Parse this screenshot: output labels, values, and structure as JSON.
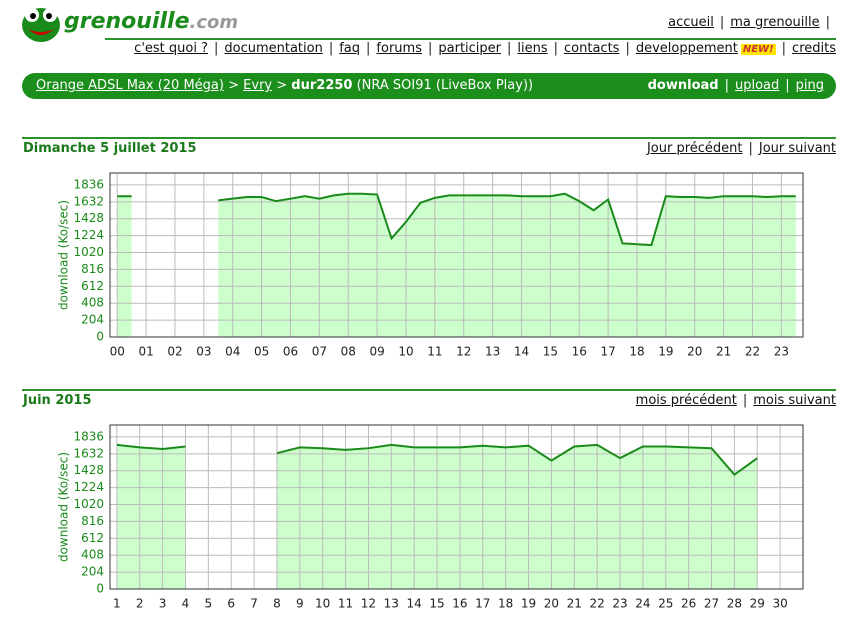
{
  "header": {
    "logo": "grenouille",
    "logo_suffix": ".com",
    "separator": "|",
    "top_links": [
      "accueil",
      "ma grenouille"
    ],
    "nav": [
      "c'est quoi ?",
      "documentation",
      "faq",
      "forums",
      "participer",
      "liens",
      "contacts",
      "developpement",
      "credits"
    ],
    "new_badge": "NEW!"
  },
  "breadcrumb": {
    "arrow": ">",
    "isp": "Orange ADSL Max (20 Méga)",
    "city": "Evry",
    "probe": "dur2250",
    "detail": "(NRA SOI91 (LiveBox Play))",
    "tabs": [
      "download",
      "upload",
      "ping"
    ]
  },
  "chart_data": [
    {
      "type": "area",
      "title": "Dimanche 5 juillet 2015",
      "links": [
        "Jour précédent",
        "Jour suivant"
      ],
      "y_label": "download (Ko/sec)",
      "fill_color": "#ccffcc",
      "line_color": "#1a8a1a",
      "grid": true,
      "x": [
        0,
        0.5,
        1,
        1.5,
        2,
        2.5,
        3,
        3.5,
        4,
        4.5,
        5,
        5.5,
        6,
        6.5,
        7,
        7.5,
        8,
        8.5,
        9,
        9.5,
        10,
        10.5,
        11,
        11.5,
        12,
        12.5,
        13,
        13.5,
        14,
        14.5,
        15,
        15.5,
        16,
        16.5,
        17,
        17.5,
        18,
        18.5,
        19,
        19.5,
        20,
        20.5,
        21,
        21.5,
        22,
        22.5,
        23,
        23.5
      ],
      "values": [
        1700,
        1700,
        null,
        null,
        null,
        null,
        null,
        1650,
        1670,
        1690,
        1690,
        1640,
        1670,
        1700,
        1670,
        1710,
        1730,
        1730,
        1720,
        1190,
        1390,
        1620,
        1680,
        1710,
        1710,
        1710,
        1710,
        1710,
        1700,
        1700,
        1700,
        1730,
        1640,
        1530,
        1660,
        1130,
        1120,
        1110,
        1700,
        1690,
        1690,
        1680,
        1700,
        1700,
        1700,
        1690,
        1700,
        1700
      ],
      "xlim": [
        -0.25,
        23.75
      ],
      "xticks": [
        {
          "value": 0,
          "label": "00"
        },
        {
          "value": 1,
          "label": "01"
        },
        {
          "value": 2,
          "label": "02"
        },
        {
          "value": 3,
          "label": "03"
        },
        {
          "value": 4,
          "label": "04"
        },
        {
          "value": 5,
          "label": "05"
        },
        {
          "value": 6,
          "label": "06"
        },
        {
          "value": 7,
          "label": "07"
        },
        {
          "value": 8,
          "label": "08"
        },
        {
          "value": 9,
          "label": "09"
        },
        10,
        11,
        12,
        13,
        14,
        15,
        16,
        17,
        18,
        19,
        20,
        21,
        22,
        23
      ],
      "ylim": [
        0,
        1980
      ],
      "yticks": [
        0,
        204,
        408,
        612,
        816,
        1020,
        1224,
        1428,
        1632,
        1836
      ]
    },
    {
      "type": "area",
      "title": "Juin 2015",
      "links": [
        "mois précédent",
        "mois suivant"
      ],
      "y_label": "download (Ko/sec)",
      "fill_color": "#ccffcc",
      "line_color": "#1a8a1a",
      "grid": true,
      "x": [
        1,
        2,
        3,
        4,
        5,
        6,
        7,
        8,
        9,
        10,
        11,
        12,
        13,
        14,
        15,
        16,
        17,
        18,
        19,
        20,
        21,
        22,
        23,
        24,
        25,
        26,
        27,
        28,
        29,
        30
      ],
      "values": [
        1740,
        1710,
        1690,
        1720,
        null,
        null,
        null,
        1640,
        1710,
        1700,
        1680,
        1700,
        1740,
        1710,
        1710,
        1710,
        1730,
        1710,
        1730,
        1550,
        1720,
        1740,
        1580,
        1720,
        1720,
        1710,
        1700,
        1380,
        1580,
        null
      ],
      "xlim": [
        0.7,
        31
      ],
      "xticks": [
        1,
        2,
        3,
        4,
        5,
        6,
        7,
        8,
        9,
        10,
        11,
        12,
        13,
        14,
        15,
        16,
        17,
        18,
        19,
        20,
        21,
        22,
        23,
        24,
        25,
        26,
        27,
        28,
        29,
        30
      ],
      "ylim": [
        0,
        1980
      ],
      "yticks": [
        0,
        204,
        408,
        612,
        816,
        1020,
        1224,
        1428,
        1632,
        1836
      ]
    }
  ]
}
